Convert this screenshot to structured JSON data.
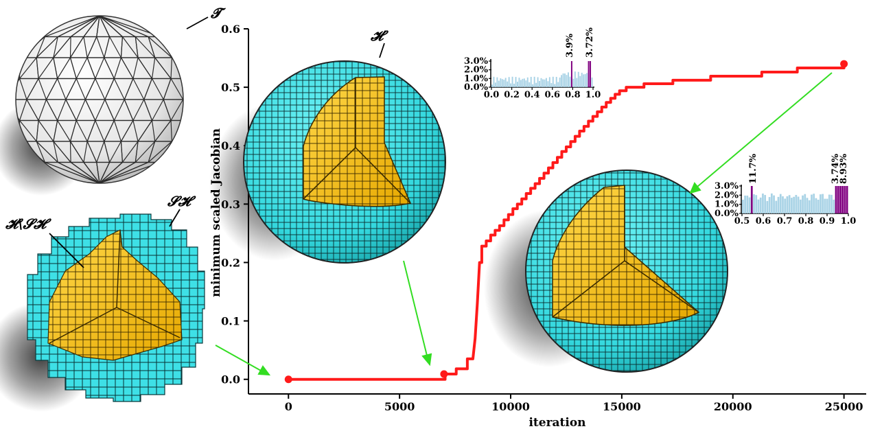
{
  "chart_data": [
    {
      "type": "line",
      "xlabel": "iteration",
      "ylabel": "minimum scaled Jacobian",
      "xlim": [
        -1800,
        26000
      ],
      "ylim": [
        -0.025,
        0.6
      ],
      "xticks": [
        "0",
        "5000",
        "10000",
        "15000",
        "20000",
        "25000"
      ],
      "yticks": [
        "0.0",
        "0.1",
        "0.2",
        "0.3",
        "0.4",
        "0.5",
        "0.6"
      ],
      "line_color": "#ff1a1a",
      "series": [
        {
          "x": [
            0,
            7000,
            7050,
            7500,
            7550,
            8000,
            8050,
            8300,
            8400,
            8500,
            8600,
            8700,
            8900,
            9100,
            9300,
            9500,
            9700,
            9900,
            10100,
            10300,
            10500,
            10700,
            10900,
            11100,
            11300,
            11500,
            11700,
            11900,
            12100,
            12300,
            12500,
            12700,
            12900,
            13100,
            13300,
            13500,
            13700,
            13900,
            14100,
            14300,
            14500,
            14700,
            14900,
            15200,
            16000,
            17300,
            19000,
            21300,
            22900,
            25000
          ],
          "y": [
            0.0,
            0.0,
            0.009,
            0.009,
            0.018,
            0.018,
            0.035,
            0.035,
            0.07,
            0.13,
            0.2,
            0.228,
            0.237,
            0.247,
            0.255,
            0.263,
            0.273,
            0.282,
            0.292,
            0.3,
            0.309,
            0.318,
            0.327,
            0.335,
            0.344,
            0.353,
            0.362,
            0.371,
            0.38,
            0.39,
            0.398,
            0.407,
            0.416,
            0.425,
            0.433,
            0.442,
            0.45,
            0.458,
            0.466,
            0.474,
            0.481,
            0.488,
            0.494,
            0.5,
            0.506,
            0.512,
            0.519,
            0.526,
            0.533,
            0.54
          ]
        }
      ],
      "markers": [
        {
          "x": 0,
          "y": 0.0
        },
        {
          "x": 7000,
          "y": 0.009
        },
        {
          "x": 25000,
          "y": 0.54
        }
      ]
    },
    {
      "type": "bar",
      "xlim": [
        0.0,
        1.0
      ],
      "xticks": [
        "0.0",
        "0.2",
        "0.4",
        "0.6",
        "0.8",
        "1.0"
      ],
      "yticks": [
        "0.0%",
        "1.0%",
        "2.0%",
        "3.0%"
      ],
      "bar_color": "#a9d3e6",
      "highlight_color": "#800080",
      "annotations": [
        "3.9%",
        "3.72%"
      ]
    },
    {
      "type": "bar",
      "xlim": [
        0.5,
        1.0
      ],
      "xticks": [
        "0.5",
        "0.6",
        "0.7",
        "0.8",
        "0.9",
        "1.0"
      ],
      "yticks": [
        "0.0%",
        "1.0%",
        "2.0%",
        "3.0%"
      ],
      "bar_color": "#a9d3e6",
      "highlight_color": "#800080",
      "annotations": [
        "11.7%",
        "3.74%",
        "8.93%"
      ]
    }
  ],
  "labels": {
    "T": "𝓣",
    "H_prime": "𝓗′",
    "S_H": "𝓢𝓗",
    "H_minus_S": "𝓗\\𝓢𝓗"
  },
  "colors": {
    "hex_surface": "#3ee0e6",
    "hex_interior": "#f5c518",
    "tet_surface": "#f0f0f0",
    "arrow": "#33dd22"
  }
}
